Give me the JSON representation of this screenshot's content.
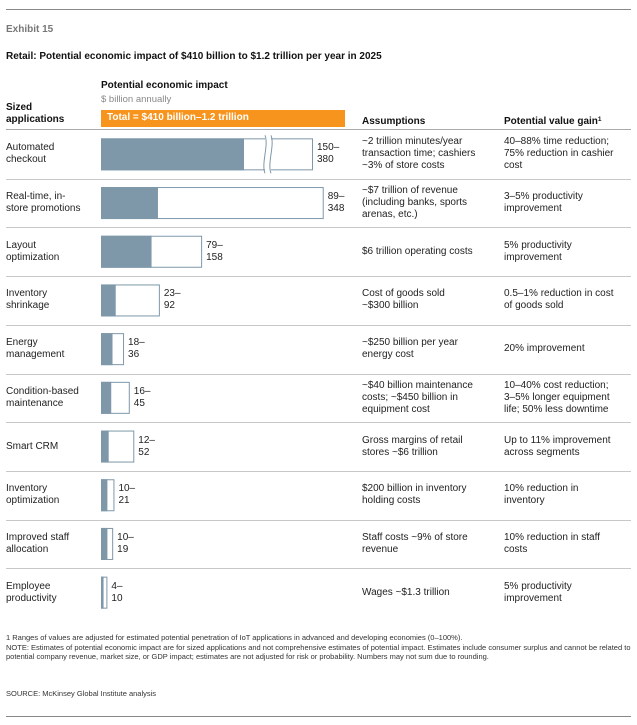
{
  "exhibit": "Exhibit 15",
  "title": "Retail: Potential economic impact of $410 billion to $1.2 trillion per year in 2025",
  "headers": {
    "impact": "Potential economic impact",
    "units": "$ billion annually",
    "sized_line1": "Sized",
    "sized_line2": "applications",
    "total": "Total = $410 billion–1.2 trillion",
    "assumptions": "Assumptions",
    "gain": "Potential value gain",
    "gain_note": "1"
  },
  "colors": {
    "low_fill": "#7e98aa",
    "high_outline": "#7e98aa",
    "accent": "#f7941d"
  },
  "chart_data": {
    "type": "bar",
    "title": "Retail: Potential economic impact of $410 billion to $1.2 trillion per year in 2025",
    "ylabel": "Potential economic impact ($ billion annually)",
    "categories": [
      "Automated checkout",
      "Real-time, in-store promotions",
      "Layout optimization",
      "Inventory shrinkage",
      "Energy management",
      "Condition-based maintenance",
      "Smart CRM",
      "Inventory optimization",
      "Improved staff allocation",
      "Employee productivity"
    ],
    "series": [
      {
        "name": "Low estimate",
        "values": [
          150,
          89,
          79,
          23,
          18,
          16,
          12,
          10,
          10,
          4
        ]
      },
      {
        "name": "High estimate",
        "values": [
          380,
          348,
          158,
          92,
          36,
          45,
          52,
          21,
          19,
          10
        ]
      }
    ],
    "axis_break": {
      "category": "Automated checkout",
      "note": "bar truncated with break marks"
    },
    "xlim": [
      0,
      355
    ]
  },
  "rows": [
    {
      "label": [
        "Automated",
        "checkout"
      ],
      "range": [
        "150–",
        "380"
      ],
      "assumptions": [
        "~2 trillion minutes/year",
        "transaction time; cashiers",
        "~3% of store costs"
      ],
      "gain": [
        "40–88% time reduction;",
        "75% reduction in cashier",
        "cost"
      ]
    },
    {
      "label": [
        "Real-time, in-",
        "store promotions"
      ],
      "range": [
        "89–",
        "348"
      ],
      "assumptions": [
        "~$7 trillion of revenue",
        "(including banks, sports",
        "arenas, etc.)"
      ],
      "gain": [
        "3–5% productivity",
        "improvement"
      ]
    },
    {
      "label": [
        "Layout",
        "optimization"
      ],
      "range": [
        "79–",
        "158"
      ],
      "assumptions": [
        "$6 trillion operating costs"
      ],
      "gain": [
        "5% productivity",
        "improvement"
      ]
    },
    {
      "label": [
        "Inventory",
        "shrinkage"
      ],
      "range": [
        "23–",
        "92"
      ],
      "assumptions": [
        "Cost of goods sold",
        "~$300 billion"
      ],
      "gain": [
        "0.5–1% reduction in cost",
        "of goods sold"
      ]
    },
    {
      "label": [
        "Energy",
        "management"
      ],
      "range": [
        "18–",
        "36"
      ],
      "assumptions": [
        "~$250 billion per year",
        "energy cost"
      ],
      "gain": [
        "20% improvement"
      ]
    },
    {
      "label": [
        "Condition-based",
        "maintenance"
      ],
      "range": [
        "16–",
        "45"
      ],
      "assumptions": [
        "~$40 billion maintenance",
        "costs; ~$450 billion in",
        "equipment cost"
      ],
      "gain": [
        "10–40% cost reduction;",
        "3–5% longer equipment",
        "life; 50% less downtime"
      ]
    },
    {
      "label": [
        "Smart CRM"
      ],
      "range": [
        "12–",
        "52"
      ],
      "assumptions": [
        "Gross margins of retail",
        "stores ~$6 trillion"
      ],
      "gain": [
        "Up to 11% improvement",
        "across segments"
      ]
    },
    {
      "label": [
        "Inventory",
        "optimization"
      ],
      "range": [
        "10–",
        "21"
      ],
      "assumptions": [
        "$200 billion in inventory",
        "holding costs"
      ],
      "gain": [
        "10% reduction in",
        "inventory"
      ]
    },
    {
      "label": [
        "Improved staff",
        "allocation"
      ],
      "range": [
        "10–",
        "19"
      ],
      "assumptions": [
        "Staff costs ~9% of store",
        "revenue"
      ],
      "gain": [
        "10% reduction in staff",
        "costs"
      ]
    },
    {
      "label": [
        "Employee",
        "productivity"
      ],
      "range": [
        "4–",
        "10"
      ],
      "assumptions": [
        "Wages ~$1.3 trillion"
      ],
      "gain": [
        "5% productivity",
        "improvement"
      ]
    }
  ],
  "footnotes": {
    "note1": "1  Ranges of values are adjusted for estimated potential penetration of IoT applications in advanced and developing economies (0–100%).",
    "note2": "NOTE: Estimates of potential economic impact are for sized applications and not comprehensive estimates of potential impact. Estimates include consumer surplus and cannot be related to potential company revenue, market size, or GDP impact; estimates are not adjusted for risk or probability. Numbers may not sum due to rounding.",
    "source": "SOURCE: McKinsey Global Institute analysis"
  }
}
